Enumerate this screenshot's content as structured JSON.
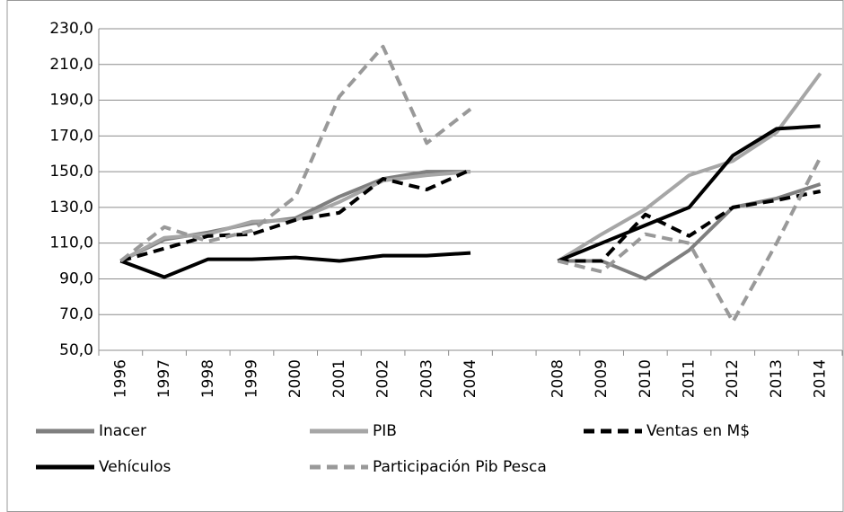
{
  "chart_data": {
    "type": "line",
    "categories": [
      "1996",
      "1997",
      "1998",
      "1999",
      "2000",
      "2001",
      "2002",
      "2003",
      "2004",
      null,
      "2008",
      "2009",
      "2010",
      "2011",
      "2012",
      "2013",
      "2014"
    ],
    "series": [
      {
        "name": "Inacer",
        "color": "#7f7f7f",
        "dashed": false,
        "values": [
          100,
          112,
          116,
          121,
          124,
          136,
          146,
          150,
          150,
          null,
          100,
          100,
          90,
          106,
          130,
          135,
          143
        ]
      },
      {
        "name": "PIB",
        "color": "#a6a6a6",
        "dashed": false,
        "values": [
          100,
          113,
          115,
          122,
          123,
          133,
          145,
          148,
          150,
          null,
          100,
          115,
          129,
          148,
          156,
          172,
          205
        ]
      },
      {
        "name": "Ventas en M$",
        "color": "#000000",
        "dashed": true,
        "values": [
          100,
          107,
          114,
          115,
          123,
          127,
          146,
          140,
          151,
          null,
          100,
          100,
          126,
          114,
          130,
          134,
          139
        ]
      },
      {
        "name": "Vehículos",
        "color": "#000000",
        "dashed": false,
        "values": [
          100,
          91,
          101,
          101,
          102,
          100,
          103,
          103,
          104.5,
          null,
          100,
          110,
          120,
          130,
          159,
          174,
          175.5
        ]
      },
      {
        "name": "Participación Pib Pesca",
        "color": "#999999",
        "dashed": true,
        "values": [
          100,
          119,
          111,
          117,
          136,
          192,
          220,
          166,
          185,
          null,
          100,
          94,
          115,
          110,
          66,
          110,
          158
        ]
      }
    ],
    "ylim": [
      50,
      230
    ],
    "yticks": [
      {
        "value": 50,
        "label": "50,0"
      },
      {
        "value": 70,
        "label": "70,0"
      },
      {
        "value": 90,
        "label": "90,0"
      },
      {
        "value": 110,
        "label": "110,0"
      },
      {
        "value": 130,
        "label": "130,0"
      },
      {
        "value": 150,
        "label": "150,0"
      },
      {
        "value": 170,
        "label": "170,0"
      },
      {
        "value": 190,
        "label": "190,0"
      },
      {
        "value": 210,
        "label": "210,0"
      },
      {
        "value": 230,
        "label": "230,0"
      }
    ],
    "grid": true,
    "legend": "bottom"
  }
}
